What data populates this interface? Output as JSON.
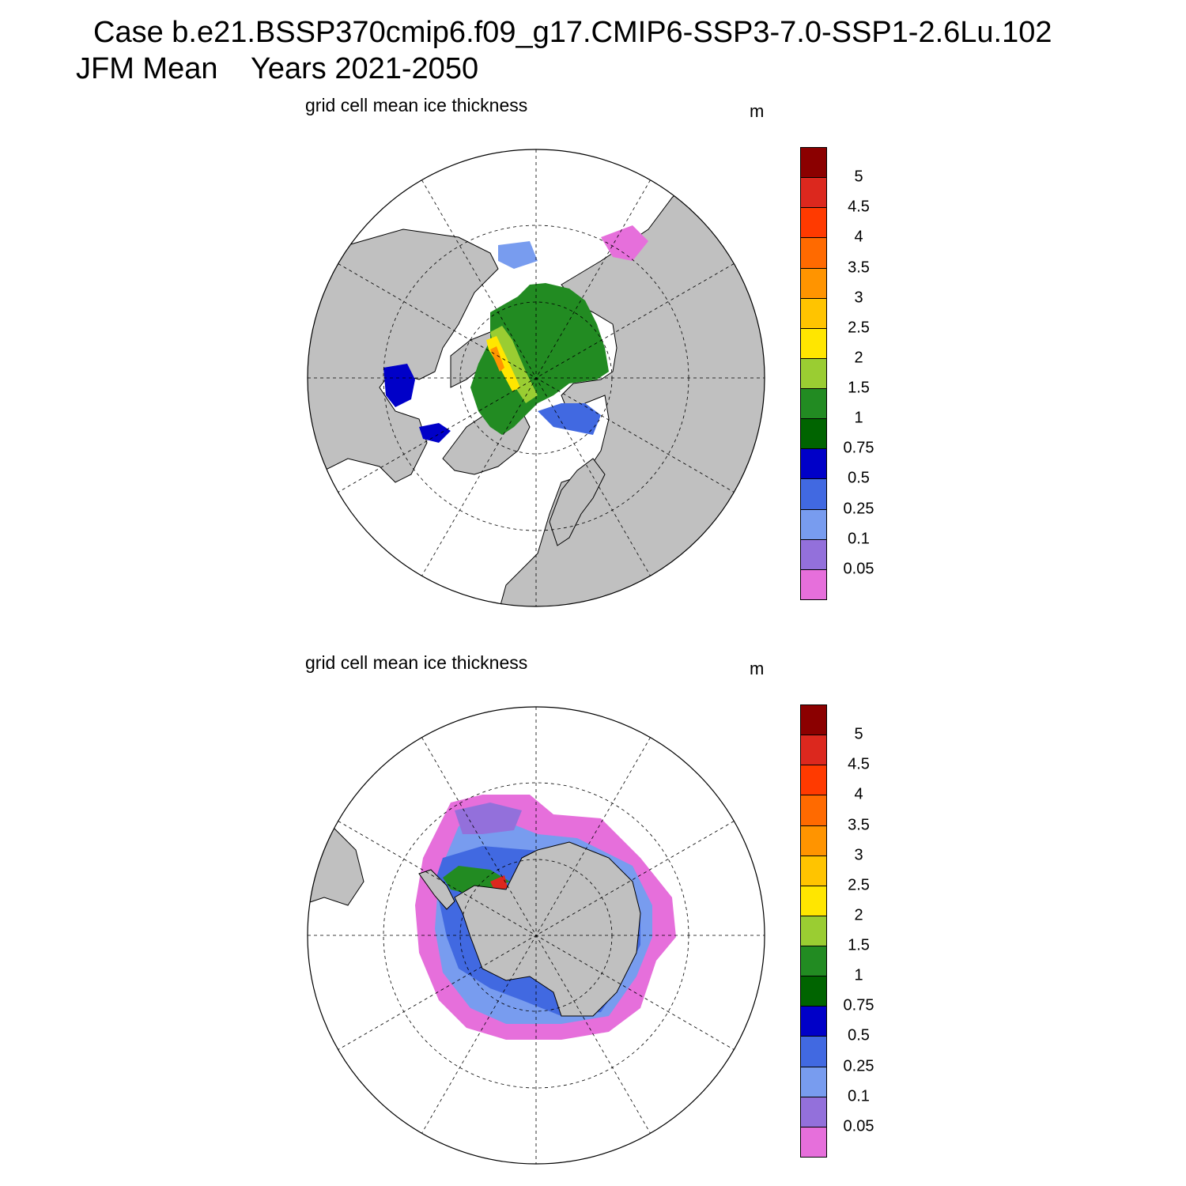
{
  "title": {
    "line1": "Case b.e21.BSSP370cmip6.f09_g17.CMIP6-SSP3-7.0-SSP1-2.6Lu.102",
    "line2": "JFM Mean    Years 2021-2050"
  },
  "panels": [
    {
      "id": "north",
      "subtitle": "grid cell mean ice thickness",
      "units": "m"
    },
    {
      "id": "south",
      "subtitle": "grid cell mean ice thickness",
      "units": "m"
    }
  ],
  "colorbar": {
    "levels": [
      "0.05",
      "0.1",
      "0.25",
      "0.5",
      "0.75",
      "1",
      "1.5",
      "2",
      "2.5",
      "3",
      "3.5",
      "4",
      "4.5",
      "5"
    ],
    "colors": [
      "#e66fdb",
      "#9370db",
      "#789cef",
      "#4169e1",
      "#0000c8",
      "#006400",
      "#228b22",
      "#9acd32",
      "#ffe600",
      "#ffc400",
      "#ff9400",
      "#ff6a00",
      "#ff3a00",
      "#dc281e",
      "#8b0000"
    ]
  },
  "chart_data": [
    {
      "type": "heatmap",
      "projection": "north polar stereographic",
      "title": "grid cell mean ice thickness",
      "units": "m",
      "contour_levels": [
        0.05,
        0.1,
        0.25,
        0.5,
        0.75,
        1,
        1.5,
        2,
        2.5,
        3,
        3.5,
        4,
        4.5,
        5
      ],
      "colors": {
        "land": "#c0c0c0",
        "open_water": "#ffffff"
      }
    },
    {
      "type": "heatmap",
      "projection": "south polar stereographic",
      "title": "grid cell mean ice thickness",
      "units": "m",
      "contour_levels": [
        0.05,
        0.1,
        0.25,
        0.5,
        0.75,
        1,
        1.5,
        2,
        2.5,
        3,
        3.5,
        4,
        4.5,
        5
      ],
      "colors": {
        "land": "#c0c0c0",
        "open_water": "#ffffff"
      }
    }
  ]
}
